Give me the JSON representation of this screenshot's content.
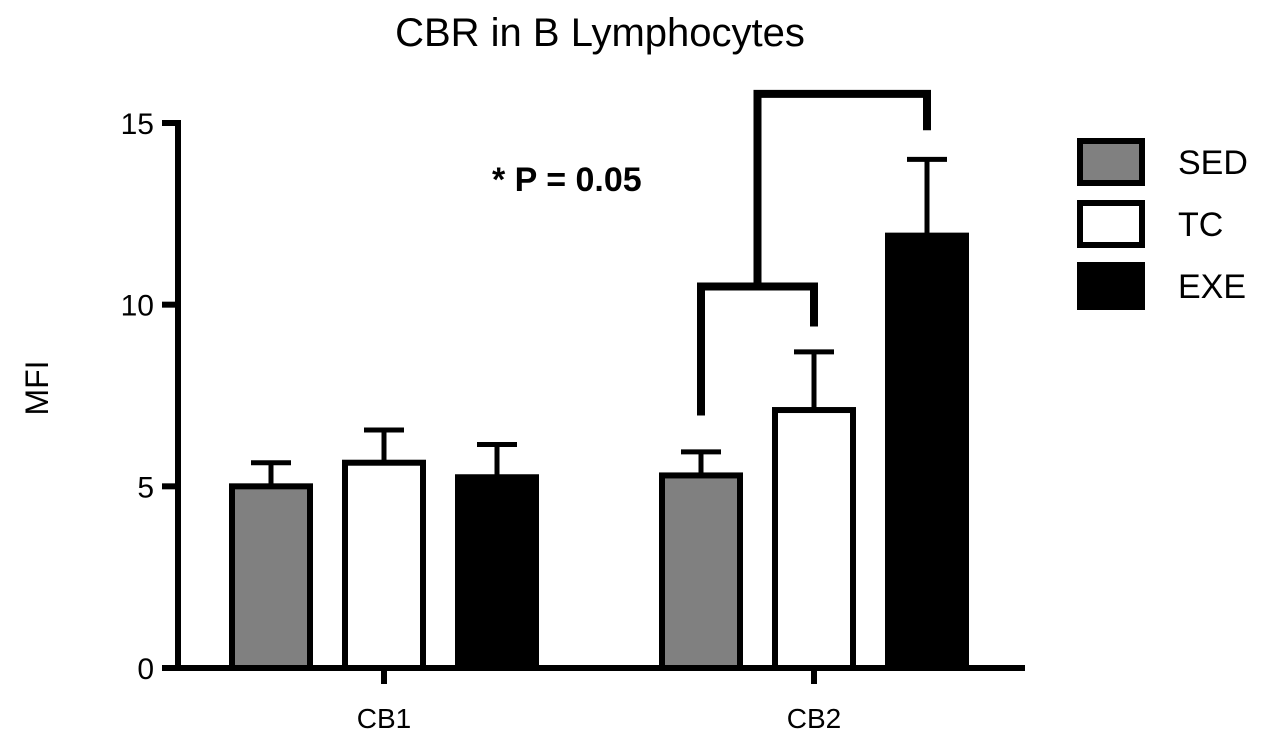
{
  "chart_data": {
    "type": "bar",
    "title": "CBR in B Lymphocytes",
    "xlabel": "",
    "ylabel": "MFI",
    "ylim": [
      0,
      15
    ],
    "yticks": [
      0,
      5,
      10,
      15
    ],
    "categories": [
      "CB1",
      "CB2"
    ],
    "series": [
      {
        "name": "SED",
        "color": "#808080",
        "values": [
          5.0,
          5.3
        ],
        "errors": [
          0.65,
          0.65
        ]
      },
      {
        "name": "TC",
        "color": "#ffffff",
        "values": [
          5.65,
          7.1
        ],
        "errors": [
          0.9,
          1.6
        ]
      },
      {
        "name": "EXE",
        "color": "#000000",
        "values": [
          5.25,
          11.9
        ],
        "errors": [
          0.9,
          2.1
        ]
      }
    ],
    "legend_position": "right",
    "grid": false,
    "annotations": [
      {
        "text": "* P = 0.05"
      }
    ]
  }
}
